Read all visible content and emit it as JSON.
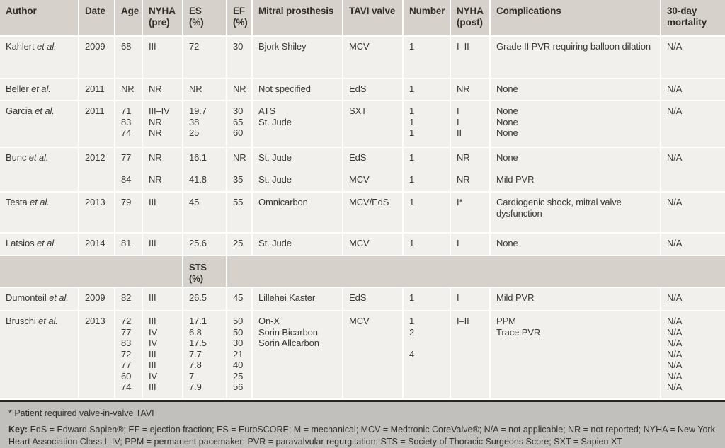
{
  "colors": {
    "header_bg": "#d6d2cb",
    "row_bg": "#f1f0ec",
    "footer_bg": "#c2c0bc",
    "rule": "#262522",
    "text": "#3a3936"
  },
  "table": {
    "columns": [
      {
        "id": "author",
        "label": [
          "Author"
        ]
      },
      {
        "id": "date",
        "label": [
          "Date"
        ]
      },
      {
        "id": "age",
        "label": [
          "Age"
        ]
      },
      {
        "id": "nyha-pre",
        "label": [
          "NYHA",
          "(pre)"
        ]
      },
      {
        "id": "es",
        "label": [
          "ES",
          "(%)"
        ]
      },
      {
        "id": "ef",
        "label": [
          "EF",
          "(%)"
        ]
      },
      {
        "id": "mitral-prosthesis",
        "label": [
          "Mitral prosthesis"
        ]
      },
      {
        "id": "tavi-valve",
        "label": [
          "TAVI valve"
        ]
      },
      {
        "id": "number",
        "label": [
          "Number"
        ]
      },
      {
        "id": "nyha-post",
        "label": [
          "NYHA",
          "(post)"
        ]
      },
      {
        "id": "complications",
        "label": [
          "Complications"
        ]
      },
      {
        "id": "mortality",
        "label": [
          "30-day",
          "mortality"
        ]
      }
    ],
    "rows": [
      {
        "author": [
          "Kahlert",
          "et al."
        ],
        "cells": [
          [
            "2009"
          ],
          [
            "68"
          ],
          [
            "III"
          ],
          [
            "72"
          ],
          [
            "30"
          ],
          [
            "Bjork Shiley"
          ],
          [
            "MCV"
          ],
          [
            "1"
          ],
          [
            "I–II"
          ],
          [
            "Grade II PVR requiring balloon dilation"
          ],
          [
            "N/A"
          ]
        ]
      },
      {
        "author": [
          "Beller",
          "et al."
        ],
        "cells": [
          [
            "2011"
          ],
          [
            "NR"
          ],
          [
            "NR"
          ],
          [
            "NR"
          ],
          [
            "NR"
          ],
          [
            "Not specified"
          ],
          [
            "EdS"
          ],
          [
            "1"
          ],
          [
            "NR"
          ],
          [
            "None"
          ],
          [
            "N/A"
          ]
        ]
      },
      {
        "author": [
          "Garcia",
          "et al."
        ],
        "cells": [
          [
            "2011"
          ],
          [
            "71",
            "83",
            "74"
          ],
          [
            "III–IV",
            "NR",
            "NR"
          ],
          [
            "19.7",
            "38",
            "25"
          ],
          [
            "30",
            "65",
            "60"
          ],
          [
            "ATS",
            "St. Jude"
          ],
          [
            "SXT"
          ],
          [
            "1",
            "1",
            "1"
          ],
          [
            "I",
            "I",
            "II"
          ],
          [
            "None",
            "None",
            "None"
          ],
          [
            "N/A"
          ]
        ]
      },
      {
        "author": [
          "Bunc",
          "et al."
        ],
        "cells": [
          [
            "2012"
          ],
          [
            "77",
            "",
            "84"
          ],
          [
            "NR",
            "",
            "NR"
          ],
          [
            "16.1",
            "",
            "41.8"
          ],
          [
            "NR",
            "",
            "35"
          ],
          [
            "St. Jude",
            "",
            "St. Jude"
          ],
          [
            "EdS",
            "",
            "MCV"
          ],
          [
            "1",
            "",
            "1"
          ],
          [
            "NR",
            "",
            "NR"
          ],
          [
            "None",
            "",
            "Mild PVR"
          ],
          [
            "N/A"
          ]
        ]
      },
      {
        "author": [
          "Testa",
          "et al."
        ],
        "cells": [
          [
            "2013"
          ],
          [
            "79"
          ],
          [
            "III"
          ],
          [
            "45"
          ],
          [
            "55"
          ],
          [
            "Omnicarbon"
          ],
          [
            "MCV/EdS"
          ],
          [
            "1"
          ],
          [
            "I*"
          ],
          [
            "Cardiogenic shock, mitral valve dysfunction"
          ],
          [
            "N/A"
          ]
        ]
      },
      {
        "author": [
          "Latsios",
          "et al."
        ],
        "cells": [
          [
            "2014"
          ],
          [
            "81"
          ],
          [
            "III"
          ],
          [
            "25.6"
          ],
          [
            "25"
          ],
          [
            "St. Jude"
          ],
          [
            "MCV"
          ],
          [
            "1"
          ],
          [
            "I"
          ],
          [
            "None"
          ],
          [
            "N/A"
          ]
        ]
      },
      {
        "subheader": "STS (%)"
      },
      {
        "author": [
          "Dumonteil",
          "et al."
        ],
        "cells": [
          [
            "2009"
          ],
          [
            "82"
          ],
          [
            "III"
          ],
          [
            "26.5"
          ],
          [
            "45"
          ],
          [
            "Lillehei Kaster"
          ],
          [
            "EdS"
          ],
          [
            "1"
          ],
          [
            "I"
          ],
          [
            "Mild PVR"
          ],
          [
            "N/A"
          ]
        ]
      },
      {
        "author": [
          "Bruschi",
          "et al."
        ],
        "cells": [
          [
            "2013"
          ],
          [
            "72",
            "77",
            "83",
            "72",
            "77",
            "60",
            "74"
          ],
          [
            "III",
            "IV",
            "IV",
            "III",
            "III",
            "IV",
            "III"
          ],
          [
            "17.1",
            "6.8",
            "17.5",
            "7.7",
            "7.8",
            "7",
            "7.9"
          ],
          [
            "50",
            "50",
            "30",
            "21",
            "40",
            "25",
            "56"
          ],
          [
            "On-X",
            "Sorin Bicarbon",
            "Sorin Allcarbon"
          ],
          [
            "MCV"
          ],
          [
            "1",
            "2",
            "",
            "4"
          ],
          [
            "I–II"
          ],
          [
            "PPM",
            "Trace PVR"
          ],
          [
            "N/A",
            "N/A",
            "N/A",
            "N/A",
            "N/A",
            "N/A",
            "N/A"
          ]
        ]
      }
    ]
  },
  "footer": {
    "footnote": "* Patient required valve-in-valve TAVI",
    "key_label": "Key:",
    "key_text": " EdS = Edward Sapien®; EF = ejection fraction; ES = EuroSCORE; M = mechanical; MCV = Medtronic CoreValve®; N/A = not applicable; NR = not reported; NYHA = New York Heart Association Class I–IV; PPM = permanent pacemaker; PVR = paravalvular regurgitation; STS = Society of Thoracic Surgeons Score; SXT = Sapien XT"
  }
}
